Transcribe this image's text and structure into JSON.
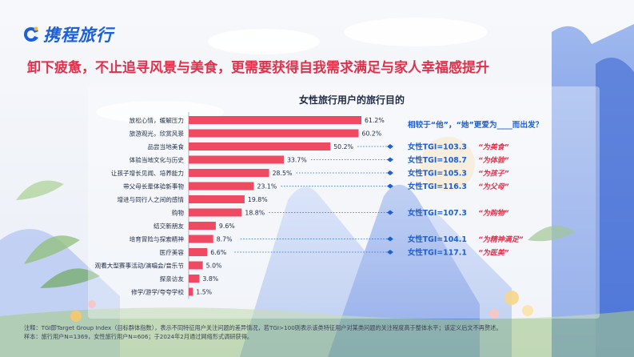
{
  "brand": {
    "name": "携程旅行",
    "color": "#1d5fd6"
  },
  "headline": "卸下疲惫，不止追寻风景与美食，更需要获得自我需求满足与家人幸福感提升",
  "chart_data": {
    "type": "bar",
    "orientation": "horizontal",
    "title": "女性旅行用户的旅行目的",
    "categories": [
      "放松心情，缓解压力",
      "旅游观光，欣赏风景",
      "品尝当地美食",
      "体验当地文化与历史",
      "让孩子增长见闻、培养能力",
      "带父母长辈体验新事物",
      "增进与同行人之间的感情",
      "购物",
      "结交新朋友",
      "培育冒险与探索精神",
      "医疗美容",
      "观看大型赛事活动/演唱会/音乐节",
      "探亲访友",
      "修学/游学/夸夸学校"
    ],
    "values": [
      61.2,
      60.2,
      50.2,
      33.7,
      28.5,
      23.1,
      19.8,
      18.8,
      9.6,
      8.7,
      6.6,
      5.0,
      3.8,
      1.5
    ],
    "value_labels": [
      "61.2%",
      "60.2%",
      "50.2%",
      "33.7%",
      "28.5%",
      "23.1%",
      "19.8%",
      "18.8%",
      "9.6%",
      "8.7%",
      "6.6%",
      "5.0%",
      "3.8%",
      "1.5%"
    ],
    "unit": "%",
    "xlim": [
      0,
      65
    ],
    "bar_color": "#ef4a61",
    "grid": false
  },
  "comparison": {
    "question": "相较于“他”，“她”更爱为____而出发？",
    "items": [
      {
        "row": 2,
        "tgi": "女性TGI=103.3",
        "note": "“为美食”"
      },
      {
        "row": 3,
        "tgi": "女性TGI=108.7",
        "note": "“为体验”"
      },
      {
        "row": 4,
        "tgi": "女性TGI=105.3",
        "note": "“为孩子”"
      },
      {
        "row": 5,
        "tgi": "女性TGI=116.3",
        "note": "“为父母”"
      },
      {
        "row": 7,
        "tgi": "女性TGI=107.3",
        "note": "“为购物”"
      },
      {
        "row": 9,
        "tgi": "女性TGI=104.1",
        "note": "“为精神满足”"
      },
      {
        "row": 10,
        "tgi": "女性TGI=117.1",
        "note": "“为医美”"
      }
    ],
    "text_color": "#1d5fd6",
    "note_color": "#e0314b"
  },
  "footnote": {
    "line1": "注释：TGI即Target Group Index（目标群体指数），表示不同特征用户关注问题的差异情况，若TGI>100则表示该类特征用户对某类问题的关注程度高于整体水平；该定义后文不再赘述。",
    "line2": "样本：旅行用户N=1369，女性旅行用户N=606；于2024年2月通过网络形式调研获得。"
  }
}
